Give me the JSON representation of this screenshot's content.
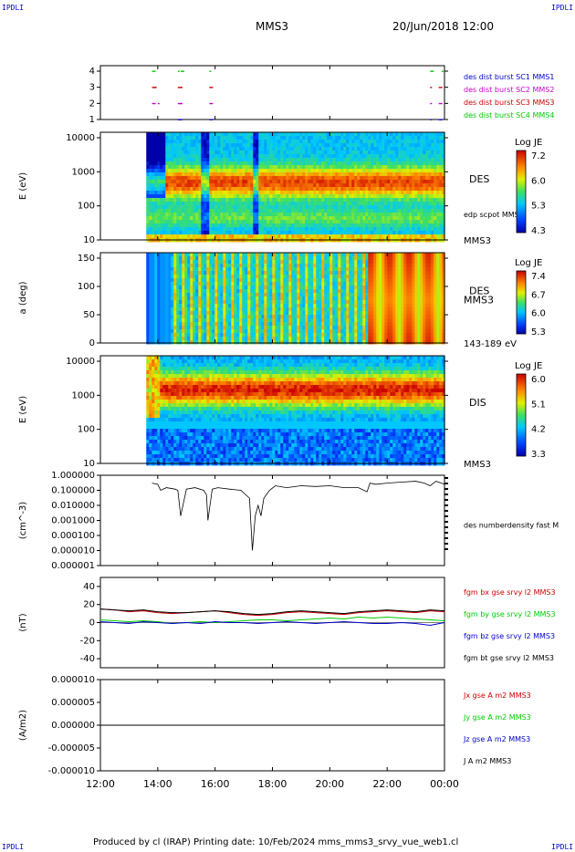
{
  "header": {
    "corner_tl": "IPDLI",
    "corner_tr": "IPDLI",
    "corner_bl": "IPDLI",
    "corner_br": "IPDLI",
    "mission": "MMS3",
    "date": "20/Jun/2018 12:00"
  },
  "footer": {
    "text": "Produced by cl (IRAP)   Printing date: 10/Feb/2024   mms_mms3_srvy_vue_web1.cl"
  },
  "time_axis": {
    "ticks": [
      "12:00",
      "14:00",
      "16:00",
      "18:00",
      "20:00",
      "22:00",
      "00:00"
    ]
  },
  "colors": {
    "blue": "#0000cc",
    "magenta": "#cc00cc",
    "red": "#cc0000",
    "green": "#00cc00",
    "black": "#000000"
  },
  "chart_data": [
    {
      "type": "scatter",
      "panel": "burst",
      "yticks": [
        "4",
        "3",
        "2",
        "1"
      ],
      "legend": [
        {
          "label": "des dist burst SC1 MMS1",
          "color": "#0000cc"
        },
        {
          "label": "des dist burst SC2 MMS2",
          "color": "#cc00cc"
        },
        {
          "label": "des dist burst SC3 MMS3",
          "color": "#cc0000"
        },
        {
          "label": "des dist burst SC4 MMS4",
          "color": "#00cc00"
        }
      ],
      "series": [
        {
          "level": 4,
          "color": "#00cc00",
          "x_hours": [
            13.8,
            14.7,
            14.8,
            15.8,
            23.5,
            23.9
          ]
        },
        {
          "level": 3,
          "color": "#cc0000",
          "x_hours": [
            13.8,
            13.9,
            14.7,
            14.8,
            15.8,
            23.5,
            23.8
          ]
        },
        {
          "level": 2,
          "color": "#cc00cc",
          "x_hours": [
            13.8,
            14.0,
            14.7,
            14.8,
            15.8,
            23.5,
            23.8
          ]
        },
        {
          "level": 1,
          "color": "#0000cc",
          "x_hours": [
            14.7,
            14.8,
            15.8,
            23.5,
            23.8
          ]
        }
      ]
    },
    {
      "type": "heatmap",
      "panel": "des_energy",
      "ylabel": "E (eV)",
      "yticks": [
        "10000",
        "1000",
        "100",
        "10"
      ],
      "yscale": "log",
      "ylim": [
        10,
        30000
      ],
      "label": "DES",
      "sublabel": "edp scpot MMS3",
      "footer_label": "MMS3",
      "colorbar": {
        "title": "Log JE",
        "ticks": [
          "7.2",
          "6.0",
          "5.3",
          "4.3"
        ],
        "range": [
          4.3,
          7.5
        ]
      },
      "data_start_hour": 13.6,
      "low_hours": [
        13.7,
        14.3,
        17.8,
        18.5,
        21.2,
        22.5
      ],
      "peak_log_energy": [
        2.7,
        3.0,
        3.1,
        3.5
      ]
    },
    {
      "type": "heatmap",
      "panel": "des_pitch",
      "ylabel": "a (deg)",
      "yticks": [
        "150",
        "100",
        "50",
        "0"
      ],
      "ylim": [
        0,
        180
      ],
      "label": "DES",
      "sublabel": "MMS3",
      "footer_label": "143-189 eV",
      "colorbar": {
        "title": "Log JE",
        "ticks": [
          "7.4",
          "6.7",
          "6.0",
          "5.3"
        ],
        "range": [
          5.3,
          7.6
        ]
      },
      "data_start_hour": 13.6
    },
    {
      "type": "heatmap",
      "panel": "dis_energy",
      "ylabel": "E (eV)",
      "yticks": [
        "10000",
        "1000",
        "100",
        "10"
      ],
      "yscale": "log",
      "ylim": [
        10,
        30000
      ],
      "label": "DIS",
      "footer_label": "MMS3",
      "colorbar": {
        "title": "Log JE",
        "ticks": [
          "6.0",
          "5.1",
          "4.2",
          "3.3"
        ],
        "range": [
          3.3,
          6.2
        ]
      },
      "data_start_hour": 13.6
    },
    {
      "type": "line",
      "panel": "density",
      "ylabel": "(cm^-3)",
      "yscale": "log",
      "yticks": [
        "1.000000",
        "0.100000",
        "0.010000",
        "0.001000",
        "0.000100",
        "0.000010",
        "0.000001"
      ],
      "ylim": [
        1e-06,
        1.0
      ],
      "legend": [
        {
          "label": "des numberdensity fast M",
          "color": "#000000"
        }
      ],
      "x_hours": [
        13.8,
        14.0,
        14.1,
        14.3,
        14.6,
        14.7,
        14.8,
        15.0,
        15.3,
        15.6,
        15.7,
        15.75,
        15.9,
        16.1,
        16.5,
        16.9,
        17.2,
        17.3,
        17.4,
        17.5,
        17.6,
        17.7,
        17.9,
        18.1,
        18.5,
        19.0,
        19.5,
        20.0,
        20.5,
        21.0,
        21.3,
        21.4,
        21.6,
        22.0,
        22.5,
        23.0,
        23.3,
        23.5,
        23.7,
        23.9,
        24.0
      ],
      "values": [
        0.3,
        0.25,
        0.1,
        0.15,
        0.12,
        0.1,
        0.002,
        0.12,
        0.15,
        0.1,
        0.05,
        0.001,
        0.12,
        0.15,
        0.12,
        0.1,
        0.03,
        1e-05,
        0.002,
        0.01,
        0.002,
        0.03,
        0.1,
        0.2,
        0.15,
        0.2,
        0.18,
        0.2,
        0.15,
        0.15,
        0.08,
        0.3,
        0.25,
        0.3,
        0.35,
        0.4,
        0.3,
        0.2,
        0.4,
        0.3,
        0.25
      ]
    },
    {
      "type": "line",
      "panel": "fgm",
      "ylabel": "(nT)",
      "yticks": [
        "40",
        "20",
        "0",
        "-20",
        "-40"
      ],
      "ylim": [
        -50,
        50
      ],
      "legend": [
        {
          "label": "fgm bx gse srvy l2 MMS3",
          "color": "#cc0000"
        },
        {
          "label": "fgm by gse srvy l2 MMS3",
          "color": "#00cc00"
        },
        {
          "label": "fgm bz gse srvy l2 MMS3",
          "color": "#0000cc"
        },
        {
          "label": "fgm bt gse srvy l2 MMS3",
          "color": "#000000"
        }
      ],
      "x_hours": [
        12.0,
        12.5,
        13.0,
        13.5,
        14.0,
        14.5,
        15.0,
        15.5,
        16.0,
        16.5,
        17.0,
        17.5,
        18.0,
        18.5,
        19.0,
        19.5,
        20.0,
        20.5,
        21.0,
        21.5,
        22.0,
        22.5,
        23.0,
        23.5,
        24.0
      ],
      "series": [
        {
          "name": "fgm bx gse srvy l2 MMS3",
          "color": "#cc0000",
          "values": [
            15,
            14,
            12,
            13,
            11,
            10,
            11,
            12,
            13,
            11,
            9,
            8,
            9,
            11,
            12,
            11,
            10,
            9,
            11,
            12,
            13,
            12,
            11,
            13,
            12
          ]
        },
        {
          "name": "fgm by gse srvy l2 MMS3",
          "color": "#00cc00",
          "values": [
            3,
            2,
            1,
            2,
            1,
            -1,
            0,
            1,
            0,
            1,
            2,
            3,
            3,
            2,
            3,
            4,
            5,
            4,
            6,
            5,
            6,
            5,
            4,
            3,
            2
          ]
        },
        {
          "name": "fgm bz gse srvy l2 MMS3",
          "color": "#0000cc",
          "values": [
            1,
            0,
            -1,
            1,
            0,
            -1,
            0,
            -1,
            1,
            0,
            0,
            -1,
            0,
            1,
            0,
            -1,
            0,
            1,
            0,
            -1,
            -1,
            0,
            -1,
            -3,
            0
          ]
        },
        {
          "name": "fgm bt gse srvy l2 MMS3",
          "color": "#000000",
          "values": [
            15,
            14,
            13,
            14,
            12,
            11,
            11,
            12,
            13,
            12,
            10,
            9,
            10,
            12,
            13,
            12,
            11,
            10,
            12,
            13,
            14,
            13,
            12,
            14,
            13
          ]
        }
      ]
    },
    {
      "type": "line",
      "panel": "current",
      "ylabel": "(A/m2)",
      "yticks": [
        "0.000010",
        "0.000005",
        "0.000000",
        "-0.000005",
        "-0.000010"
      ],
      "ylim": [
        -1e-05,
        1e-05
      ],
      "legend": [
        {
          "label": "Jx gse A m2 MMS3",
          "color": "#cc0000"
        },
        {
          "label": "Jy gse A m2 MMS3",
          "color": "#00cc00"
        },
        {
          "label": "Jz gse A m2 MMS3",
          "color": "#0000cc"
        },
        {
          "label": "J A m2 MMS3",
          "color": "#000000"
        }
      ],
      "x_hours": [
        12.0,
        24.0
      ],
      "values": [
        0.0,
        0.0
      ]
    }
  ]
}
